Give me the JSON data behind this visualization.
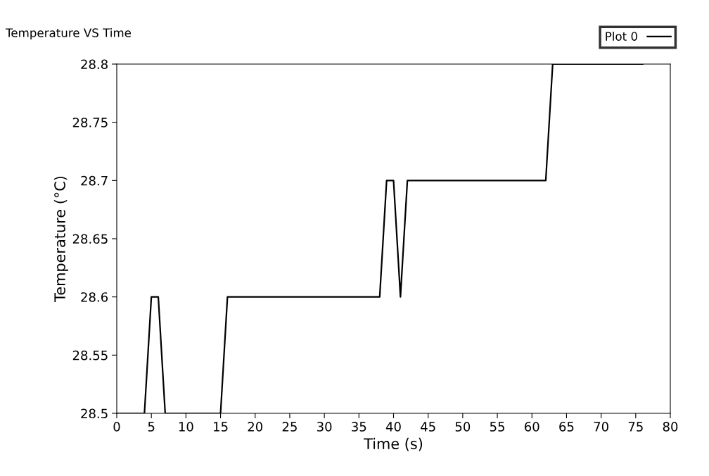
{
  "chart_data": {
    "type": "line",
    "title": "Temperature VS Time",
    "xlabel": "Time (s)",
    "ylabel": "Temperature (°C)",
    "series": [
      {
        "name": "Plot 0",
        "color": "#000000",
        "x": [
          0,
          1,
          2,
          3,
          4,
          5,
          6,
          7,
          8,
          9,
          10,
          11,
          12,
          13,
          14,
          15,
          16,
          17,
          18,
          19,
          20,
          21,
          22,
          23,
          24,
          25,
          26,
          27,
          28,
          29,
          30,
          31,
          32,
          33,
          34,
          35,
          36,
          37,
          38,
          39,
          40,
          41,
          42,
          43,
          44,
          45,
          46,
          47,
          48,
          49,
          50,
          51,
          52,
          53,
          54,
          55,
          56,
          57,
          58,
          59,
          60,
          61,
          62,
          63,
          64,
          65,
          66,
          67,
          68,
          69,
          70,
          71,
          72,
          73,
          74,
          75,
          76
        ],
        "values": [
          28.5,
          28.5,
          28.5,
          28.5,
          28.5,
          28.6,
          28.6,
          28.5,
          28.5,
          28.5,
          28.5,
          28.5,
          28.5,
          28.5,
          28.5,
          28.5,
          28.6,
          28.6,
          28.6,
          28.6,
          28.6,
          28.6,
          28.6,
          28.6,
          28.6,
          28.6,
          28.6,
          28.6,
          28.6,
          28.6,
          28.6,
          28.6,
          28.6,
          28.6,
          28.6,
          28.6,
          28.6,
          28.6,
          28.6,
          28.7,
          28.7,
          28.6,
          28.7,
          28.7,
          28.7,
          28.7,
          28.7,
          28.7,
          28.7,
          28.7,
          28.7,
          28.7,
          28.7,
          28.7,
          28.7,
          28.7,
          28.7,
          28.7,
          28.7,
          28.7,
          28.7,
          28.7,
          28.7,
          28.8,
          28.8,
          28.8,
          28.8,
          28.8,
          28.8,
          28.8,
          28.8,
          28.8,
          28.8,
          28.8,
          28.8,
          28.8,
          28.8
        ]
      }
    ],
    "xlim": [
      0,
      80
    ],
    "xticks": [
      0,
      5,
      10,
      15,
      20,
      25,
      30,
      35,
      40,
      45,
      50,
      55,
      60,
      65,
      70,
      75,
      80
    ],
    "ylim": [
      28.5,
      28.8
    ],
    "yticks": [
      28.5,
      28.55,
      28.6,
      28.65,
      28.7,
      28.75,
      28.8
    ],
    "grid": false,
    "legend": "top right",
    "marker": "none",
    "line_style": "solid"
  }
}
